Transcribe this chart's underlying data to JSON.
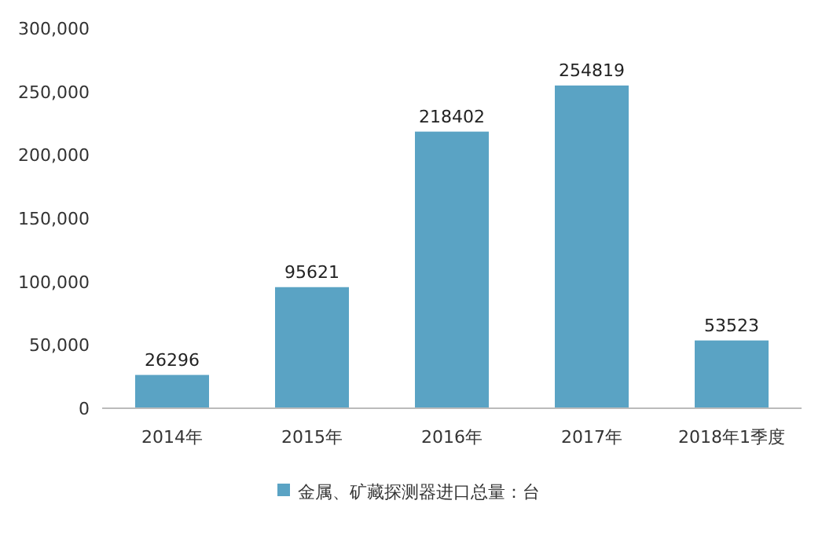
{
  "chart_data": {
    "type": "bar",
    "categories": [
      "2014年",
      "2015年",
      "2016年",
      "2017年",
      "2018年1季度"
    ],
    "series": [
      {
        "name": "金属、矿藏探测器进口总量：台",
        "color": "#5aa3c4",
        "values": [
          26296,
          95621,
          218402,
          254819,
          53523
        ]
      }
    ],
    "ylim": [
      0,
      300000
    ],
    "yticks": [
      {
        "value": 0,
        "label": "0"
      },
      {
        "value": 50000,
        "label": "50,000"
      },
      {
        "value": 100000,
        "label": "100,000"
      },
      {
        "value": 150000,
        "label": "150,000"
      },
      {
        "value": 200000,
        "label": "200,000"
      },
      {
        "value": 250000,
        "label": "250,000"
      },
      {
        "value": 300000,
        "label": "300,000"
      }
    ],
    "data_labels": true,
    "legend": "bottom",
    "grid": false
  }
}
